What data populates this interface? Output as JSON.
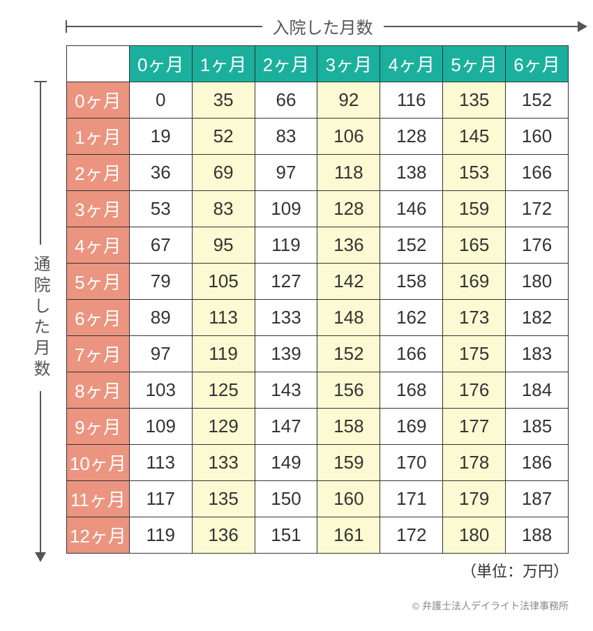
{
  "axisTop": "入院した月数",
  "axisLeft": "通院した月数",
  "unit": "（単位：万円）",
  "credit": "© 弁護士法人デイライト法律事務所",
  "colors": {
    "colHeaderBg": "#1bb09e",
    "rowHeaderBg": "#eb947f",
    "highlightBg": "#fbfad2",
    "border": "#333333",
    "axis": "#555555"
  },
  "table": {
    "type": "table",
    "columns": [
      "0ヶ月",
      "1ヶ月",
      "2ヶ月",
      "3ヶ月",
      "4ヶ月",
      "5ヶ月",
      "6ヶ月"
    ],
    "highlightCols": [
      1,
      3,
      5
    ],
    "rowHeaders": [
      "0ヶ月",
      "1ヶ月",
      "2ヶ月",
      "3ヶ月",
      "4ヶ月",
      "5ヶ月",
      "6ヶ月",
      "7ヶ月",
      "8ヶ月",
      "9ヶ月",
      "10ヶ月",
      "11ヶ月",
      "12ヶ月"
    ],
    "rows": [
      [
        0,
        35,
        66,
        92,
        116,
        135,
        152
      ],
      [
        19,
        52,
        83,
        106,
        128,
        145,
        160
      ],
      [
        36,
        69,
        97,
        118,
        138,
        153,
        166
      ],
      [
        53,
        83,
        109,
        128,
        146,
        159,
        172
      ],
      [
        67,
        95,
        119,
        136,
        152,
        165,
        176
      ],
      [
        79,
        105,
        127,
        142,
        158,
        169,
        180
      ],
      [
        89,
        113,
        133,
        148,
        162,
        173,
        182
      ],
      [
        97,
        119,
        139,
        152,
        166,
        175,
        183
      ],
      [
        103,
        125,
        143,
        156,
        168,
        176,
        184
      ],
      [
        109,
        129,
        147,
        158,
        169,
        177,
        185
      ],
      [
        113,
        133,
        149,
        159,
        170,
        178,
        186
      ],
      [
        117,
        135,
        150,
        160,
        171,
        179,
        187
      ],
      [
        119,
        136,
        151,
        161,
        172,
        180,
        188
      ]
    ]
  }
}
